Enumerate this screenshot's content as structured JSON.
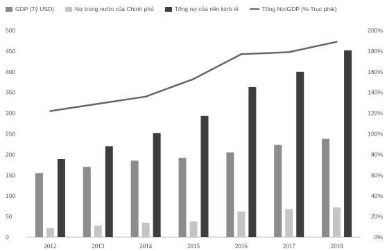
{
  "chart_data": {
    "type": "bar",
    "categories": [
      "2012",
      "2013",
      "2014",
      "2015",
      "2016",
      "2017",
      "2018"
    ],
    "series": [
      {
        "name": "GDP (Tỷ USD)",
        "kind": "bar",
        "axis": "left",
        "color": "#8c8c8c",
        "values": [
          155,
          170,
          185,
          192,
          205,
          223,
          238
        ]
      },
      {
        "name": "Nợ trong nước của Chính phủ",
        "kind": "bar",
        "axis": "left",
        "color": "#c4c4c4",
        "values": [
          22,
          28,
          35,
          38,
          62,
          68,
          72
        ]
      },
      {
        "name": "Tổng nợ của nền kinh tế",
        "kind": "bar",
        "axis": "left",
        "color": "#3d3d3d",
        "values": [
          189,
          220,
          252,
          293,
          363,
          400,
          452
        ]
      },
      {
        "name": "Tổng Nợ/GDP (%-Trục phải)",
        "kind": "line",
        "axis": "right",
        "color": "#666666",
        "values": [
          122,
          129,
          136,
          153,
          177,
          179,
          189
        ]
      }
    ],
    "y_left": {
      "min": 0,
      "max": 500,
      "step": 50,
      "ticks": [
        "0",
        "50",
        "100",
        "150",
        "200",
        "250",
        "300",
        "350",
        "400",
        "450",
        "500"
      ]
    },
    "y_right": {
      "min": 0,
      "max": 200,
      "step": 20,
      "ticks": [
        "0%",
        "20%",
        "40%",
        "60%",
        "80%",
        "100%",
        "120%",
        "140%",
        "160%",
        "180%",
        "200%"
      ]
    },
    "grid": false,
    "legend_position": "top"
  }
}
